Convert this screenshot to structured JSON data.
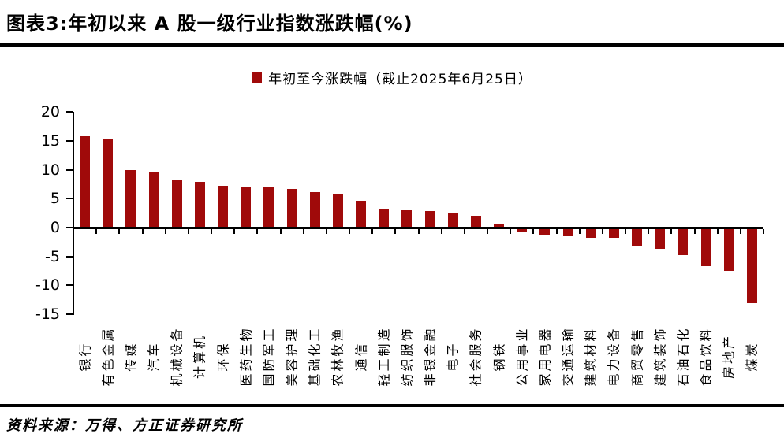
{
  "figure": {
    "title": "图表3:年初以来 A 股一级行业指数涨跌幅(%)",
    "source": "资料来源：万得、方正证券研究所"
  },
  "legend": {
    "label": "年初至今涨跌幅（截止2025年6月25日）",
    "marker_color": "#A00A0A"
  },
  "chart_data": {
    "type": "bar",
    "title": "年初以来 A 股一级行业指数涨跌幅(%)",
    "legend": "年初至今涨跌幅（截止2025年6月25日）",
    "legend_position": "top-center",
    "grid": false,
    "bar_color": "#A00A0A",
    "axis_color": "#000000",
    "xlabel": "",
    "ylabel": "",
    "ylim": [
      -15,
      20
    ],
    "yticks": [
      20,
      15,
      10,
      5,
      0,
      -5,
      -10,
      -15
    ],
    "categories": [
      "银行",
      "有色金属",
      "传媒",
      "汽车",
      "机械设备",
      "计算机",
      "环保",
      "医药生物",
      "国防军工",
      "美容护理",
      "基础化工",
      "农林牧渔",
      "通信",
      "轻工制造",
      "纺织服饰",
      "非银金融",
      "电子",
      "社会服务",
      "钢铁",
      "公用事业",
      "家用电器",
      "交通运输",
      "建筑材料",
      "电力设备",
      "商贸零售",
      "建筑装饰",
      "石油石化",
      "食品饮料",
      "房地产",
      "煤炭"
    ],
    "values": [
      15.8,
      15.3,
      10.0,
      9.7,
      8.3,
      7.9,
      7.2,
      7.0,
      6.9,
      6.7,
      6.1,
      5.9,
      4.6,
      3.1,
      3.0,
      2.8,
      2.4,
      2.0,
      0.6,
      -0.7,
      -1.2,
      -1.4,
      -1.6,
      -1.6,
      -3.0,
      -3.6,
      -4.7,
      -6.6,
      -7.3,
      -12.9
    ]
  }
}
